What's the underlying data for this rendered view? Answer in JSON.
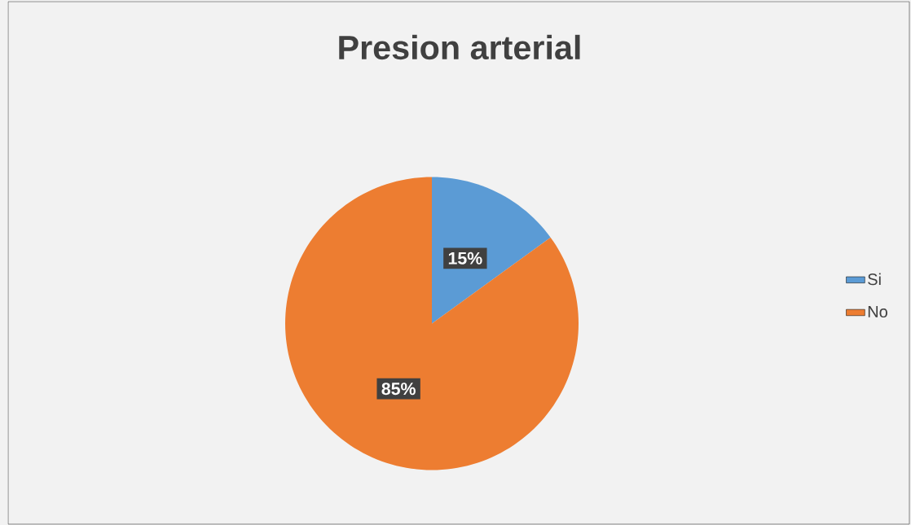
{
  "chart_data": {
    "type": "pie",
    "title": "Presion arterial",
    "categories": [
      "Si",
      "No"
    ],
    "values": [
      15,
      85
    ],
    "colors": [
      "#5b9bd5",
      "#ed7d31"
    ],
    "value_labels": [
      "15%",
      "85%"
    ],
    "legend": "right"
  }
}
